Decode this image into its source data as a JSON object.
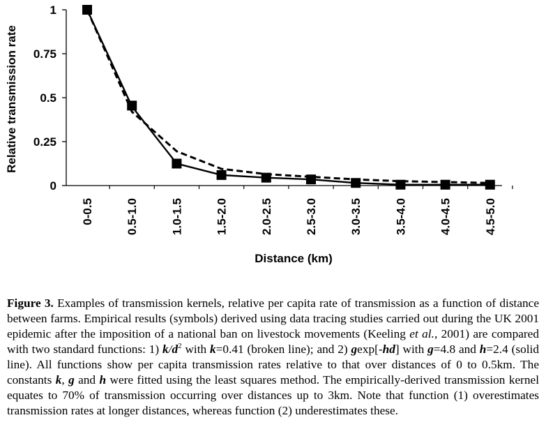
{
  "chart_data": {
    "type": "line",
    "categories": [
      "0-0.5",
      "0.5-1.0",
      "1.0-1.5",
      "1.5-2.0",
      "2.0-2.5",
      "2.5-3.0",
      "3.0-3.5",
      "3.5-4.0",
      "4.0-4.5",
      "4.5-5.0"
    ],
    "series": [
      {
        "style": "symbols",
        "values": [
          1.0,
          0.455,
          0.125,
          0.06,
          0.045,
          0.035,
          0.015,
          0.005,
          0.005,
          0.005
        ]
      },
      {
        "style": "solid",
        "values": [
          1.0,
          0.45,
          0.125,
          0.06,
          0.045,
          0.035,
          0.015,
          0.005,
          0.005,
          0.005
        ]
      },
      {
        "style": "broken",
        "values": [
          1.0,
          0.42,
          0.195,
          0.095,
          0.065,
          0.05,
          0.035,
          0.025,
          0.02,
          0.015
        ]
      }
    ],
    "yticks": [
      "1",
      "0.75",
      "0.5",
      "0.25",
      "0"
    ],
    "ytick_values": [
      1,
      0.75,
      0.5,
      0.25,
      0
    ],
    "ylim": [
      0,
      1
    ],
    "xlabel": "Distance (km)",
    "ylabel": "Relative transmission rate",
    "grid": false,
    "colors": {
      "line": "#000000",
      "marker": "#000000"
    }
  },
  "caption": {
    "label": "Figure 3.",
    "p1": " Examples of transmission kernels, relative per capita rate of transmission as a function of distance between farms. Empirical results (symbols) derived using data tracing studies carried out during the UK 2001 epidemic after the imposition of a national ban on livestock movements (Keeling ",
    "etal": "et al.",
    "p2": ", 2001) are compared with two standard functions: 1) ",
    "k1": "k",
    "slash": "/",
    "d1": "d",
    "sq": "2",
    "p3": " with ",
    "k2": "k",
    "p4": "=0.41 (broken line); and 2) ",
    "g1": "g",
    "exp": "exp[-",
    "hd": "hd",
    "p5": "] with ",
    "g2": "g",
    "p6": "=4.8 and ",
    "h1": "h",
    "p7": "=2.4 (solid line). All functions show per capita transmission rates relative to that over distances of 0 to 0.5km. The constants ",
    "k3": "k",
    "comma": ", ",
    "g3": "g",
    "and": " and ",
    "h2": "h",
    "p8": " were fitted using the least squares method. The empirically-derived transmission kernel equates to 70% of transmission occurring over distances up to 3km. Note that function (1) overestimates transmission rates at longer distances, whereas function (2) underestimates these."
  }
}
